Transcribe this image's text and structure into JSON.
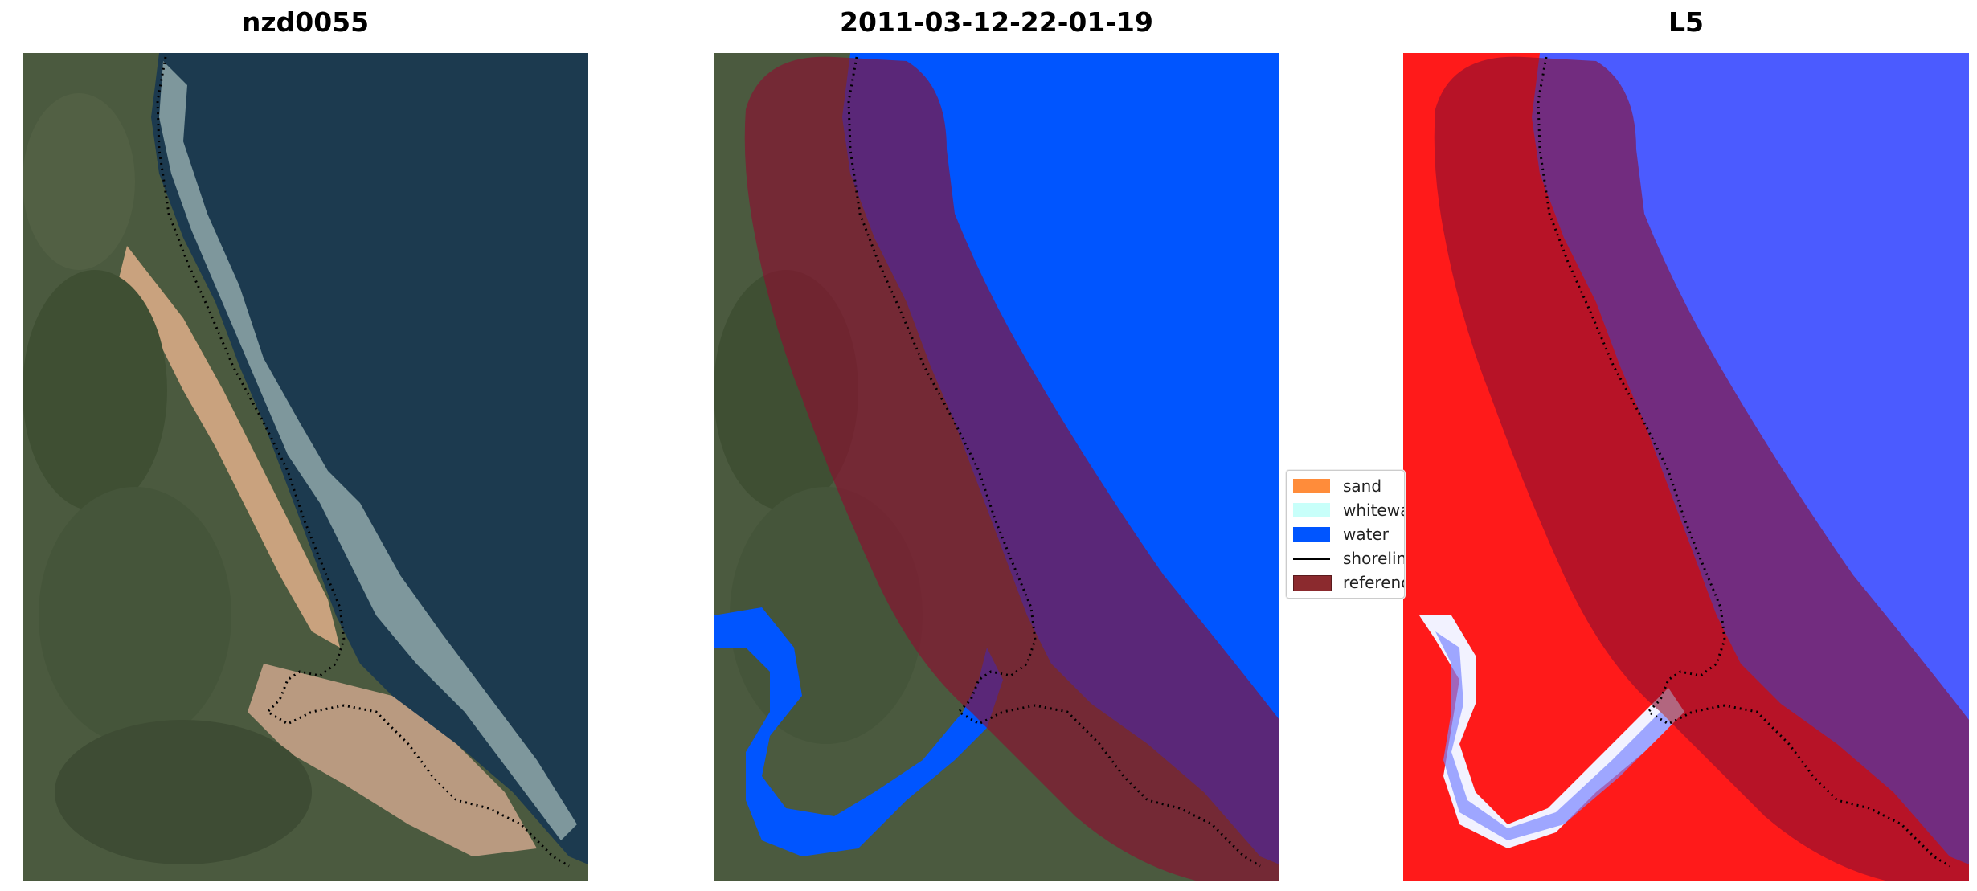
{
  "panels": [
    {
      "title": "nzd0055"
    },
    {
      "title": "2011-03-12-22-01-19"
    },
    {
      "title": "L5"
    }
  ],
  "legend": {
    "items": [
      {
        "label": "sand",
        "color": "#ff8c3a"
      },
      {
        "label": "whitewater",
        "color": "#c8fffa"
      },
      {
        "label": "water",
        "color": "#0055ff"
      },
      {
        "label": "shoreline",
        "color": "#000000"
      },
      {
        "label": "reference shoreline buffer",
        "color": "#8b2a2e"
      }
    ]
  },
  "colors": {
    "land": "#4c5a3e",
    "sand": "#c9a27e",
    "ocean": "#1c3a50",
    "water_class": "#0055ff",
    "buffer": "#8b1030",
    "index_land": "#ff1a1a",
    "index_water": "#4b5bff"
  }
}
